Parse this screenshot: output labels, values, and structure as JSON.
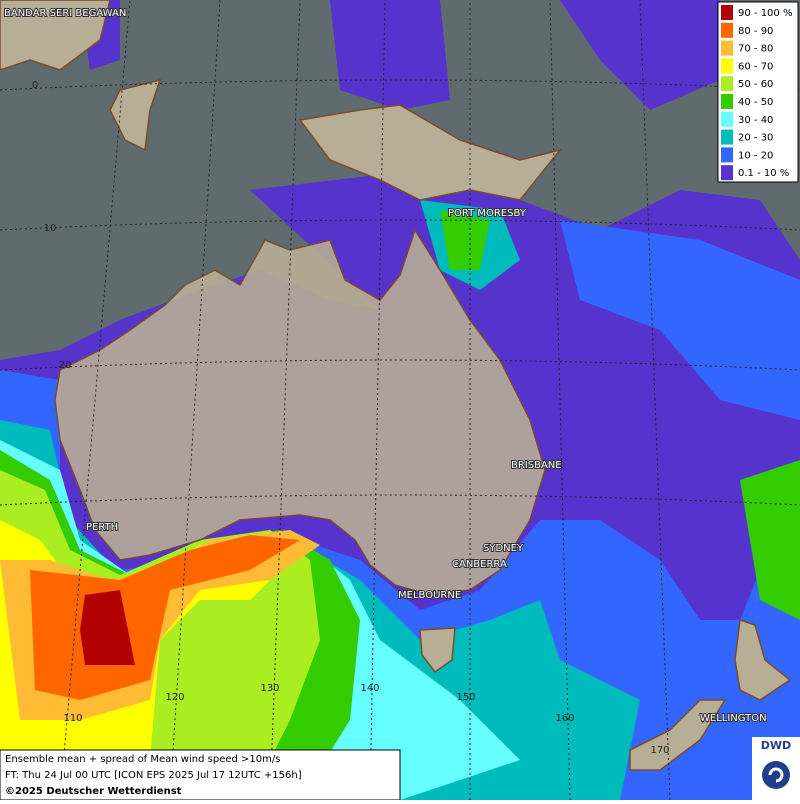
{
  "map": {
    "places": [
      {
        "label": "BANDAR SERI BEGAWAN"
      },
      {
        "label": "PORT MORESBY"
      },
      {
        "label": "BRISBANE"
      },
      {
        "label": "PERTH"
      },
      {
        "label": "SYDNEY"
      },
      {
        "label": "CANBERRA"
      },
      {
        "label": "MELBOURNE"
      },
      {
        "label": "WELLINGTON"
      }
    ],
    "grid_labels": [
      "0",
      "10",
      "20",
      "110",
      "120",
      "130",
      "140",
      "150",
      "160",
      "170"
    ],
    "legend": {
      "entries": [
        {
          "label": "90 - 100 %",
          "color": "#b00000"
        },
        {
          "label": "80 - 90",
          "color": "#ff6600"
        },
        {
          "label": "70 - 80",
          "color": "#ffbb33"
        },
        {
          "label": "60 - 70",
          "color": "#ffff00"
        },
        {
          "label": "50 - 60",
          "color": "#aaee22"
        },
        {
          "label": "40 - 50",
          "color": "#33cc00"
        },
        {
          "label": "30 - 40",
          "color": "#66ffff"
        },
        {
          "label": "20 - 30",
          "color": "#00bbbb"
        },
        {
          "label": "10 - 20",
          "color": "#3366ff"
        },
        {
          "label": "0.1 - 10 %",
          "color": "#5533cc"
        }
      ]
    },
    "footer": {
      "lines": [
        "Ensemble mean + spread of Mean wind speed >10m/s",
        "FT: Thu 24 Jul 00 UTC [ICON EPS 2025 Jul 17 12UTC +156h]",
        "©2025 Deutscher Wetterdienst"
      ]
    },
    "logo": "DWD"
  }
}
